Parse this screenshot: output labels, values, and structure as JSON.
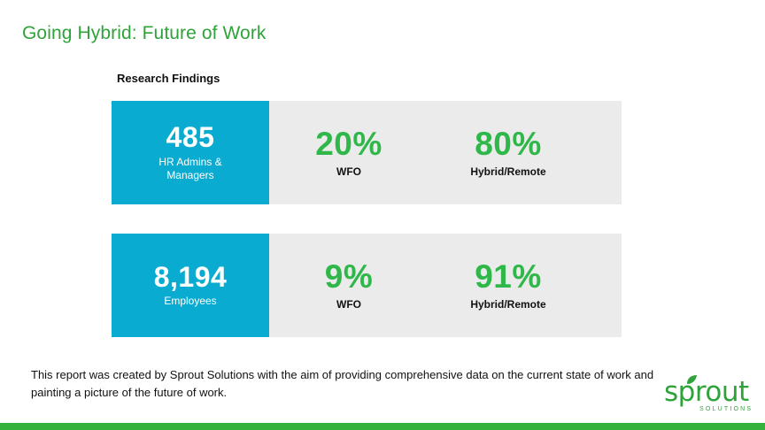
{
  "title": "Going Hybrid: Future of Work",
  "section_heading": "Research Findings",
  "rows": [
    {
      "count": "485",
      "count_label": "HR Admins & Managers",
      "stats": [
        {
          "value": "20%",
          "label": "WFO"
        },
        {
          "value": "80%",
          "label": "Hybrid/Remote"
        }
      ]
    },
    {
      "count": "8,194",
      "count_label": "Employees",
      "stats": [
        {
          "value": "9%",
          "label": "WFO"
        },
        {
          "value": "91%",
          "label": "Hybrid/Remote"
        }
      ]
    }
  ],
  "footnote": "This report was created by Sprout Solutions with the aim of providing comprehensive data on the current state of work and painting a picture of the future of work.",
  "logo": {
    "word": "sprout",
    "subtitle": "SOLUTIONS",
    "icon": "leaf-icon"
  },
  "colors": {
    "accent_green": "#2fa33a",
    "stat_green": "#2fb849",
    "count_blue": "#09acd0",
    "panel_gray": "#ebebeb"
  }
}
